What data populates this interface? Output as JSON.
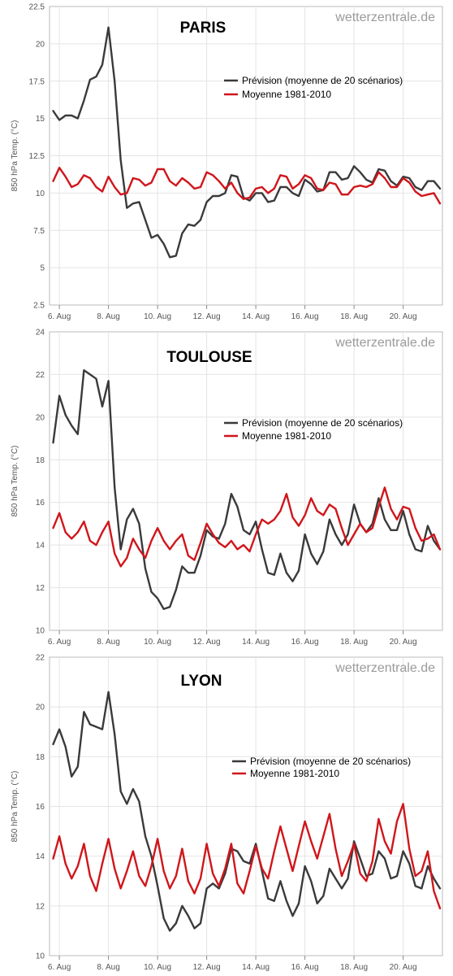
{
  "legend": {
    "forecast_label": "Prévision (moyenne de 20 scénarios)",
    "mean_label": "Moyenne 1981-2010"
  },
  "colors": {
    "forecast": "#3a3a3c",
    "mean": "#d0161b",
    "grid": "#e4e4e4",
    "frame": "#bbbbbb"
  },
  "chart_data": [
    {
      "type": "line",
      "title": "PARIS",
      "watermark": "wetterzentrale.de",
      "ylabel": "850 hPa Temp. (°C)",
      "ylim": [
        2.5,
        22.5
      ],
      "yticks": [
        2.5,
        5,
        7.5,
        10,
        12.5,
        15,
        17.5,
        20,
        22.5
      ],
      "ytick_labels": [
        "2.5",
        "5",
        "7.5",
        "10",
        "12.5",
        "15",
        "17.5",
        "20",
        "22.5"
      ],
      "xlim": [
        5.6,
        21.6
      ],
      "xticks": [
        6,
        8,
        10,
        12,
        14,
        16,
        18,
        20
      ],
      "xtick_labels": [
        "6. Aug",
        "8. Aug",
        "10. Aug",
        "12. Aug",
        "14. Aug",
        "16. Aug",
        "18. Aug",
        "20. Aug"
      ],
      "grid": true,
      "legend_position": "center-right",
      "series": [
        {
          "name": "Prévision (moyenne de 20 scénarios)",
          "x": [
            5.75,
            6,
            6.25,
            6.5,
            6.75,
            7,
            7.25,
            7.5,
            7.75,
            8,
            8.25,
            8.5,
            8.75,
            9,
            9.25,
            9.5,
            9.75,
            10,
            10.25,
            10.5,
            10.75,
            11,
            11.25,
            11.5,
            11.75,
            12,
            12.25,
            12.5,
            12.75,
            13,
            13.25,
            13.5,
            13.75,
            14,
            14.25,
            14.5,
            14.75,
            15,
            15.25,
            15.5,
            15.75,
            16,
            16.25,
            16.5,
            16.75,
            17,
            17.25,
            17.5,
            17.75,
            18,
            18.25,
            18.5,
            18.75,
            19,
            19.25,
            19.5,
            19.75,
            20,
            20.25,
            20.5,
            20.75,
            21,
            21.25,
            21.5
          ],
          "values": [
            15.5,
            14.9,
            15.2,
            15.2,
            15.0,
            16.2,
            17.6,
            17.8,
            18.6,
            21.1,
            17.5,
            12.2,
            9.0,
            9.3,
            9.4,
            8.2,
            7.0,
            7.2,
            6.6,
            5.7,
            5.8,
            7.3,
            7.9,
            7.8,
            8.2,
            9.4,
            9.8,
            9.8,
            10.0,
            11.2,
            11.1,
            9.7,
            9.5,
            10.0,
            10.0,
            9.4,
            9.5,
            10.4,
            10.4,
            10.0,
            9.8,
            10.9,
            10.6,
            10.1,
            10.2,
            11.4,
            11.4,
            10.9,
            11.0,
            11.8,
            11.4,
            10.9,
            10.7,
            11.6,
            11.5,
            10.8,
            10.5,
            11.1,
            11.0,
            10.4,
            10.2,
            10.8,
            10.8,
            10.3
          ]
        },
        {
          "name": "Moyenne 1981-2010",
          "x": [
            5.75,
            6,
            6.25,
            6.5,
            6.75,
            7,
            7.25,
            7.5,
            7.75,
            8,
            8.25,
            8.5,
            8.75,
            9,
            9.25,
            9.5,
            9.75,
            10,
            10.25,
            10.5,
            10.75,
            11,
            11.25,
            11.5,
            11.75,
            12,
            12.25,
            12.5,
            12.75,
            13,
            13.25,
            13.5,
            13.75,
            14,
            14.25,
            14.5,
            14.75,
            15,
            15.25,
            15.5,
            15.75,
            16,
            16.25,
            16.5,
            16.75,
            17,
            17.25,
            17.5,
            17.75,
            18,
            18.25,
            18.5,
            18.75,
            19,
            19.25,
            19.5,
            19.75,
            20,
            20.25,
            20.5,
            20.75,
            21,
            21.25,
            21.5
          ],
          "values": [
            10.8,
            11.7,
            11.1,
            10.4,
            10.6,
            11.2,
            11.0,
            10.4,
            10.1,
            11.1,
            10.4,
            9.9,
            10.0,
            11.0,
            10.9,
            10.5,
            10.7,
            11.6,
            11.6,
            10.8,
            10.5,
            11.0,
            10.7,
            10.3,
            10.4,
            11.4,
            11.2,
            10.8,
            10.3,
            10.7,
            10.0,
            9.6,
            9.7,
            10.3,
            10.4,
            10.0,
            10.3,
            11.2,
            11.1,
            10.3,
            10.6,
            11.2,
            11.0,
            10.3,
            10.2,
            10.7,
            10.6,
            9.9,
            9.9,
            10.4,
            10.5,
            10.4,
            10.6,
            11.4,
            11.0,
            10.4,
            10.4,
            11.0,
            10.7,
            10.1,
            9.8,
            9.9,
            10.0,
            9.3
          ]
        }
      ]
    },
    {
      "type": "line",
      "title": "TOULOUSE",
      "watermark": "wetterzentrale.de",
      "ylabel": "850 hPa Temp. (°C)",
      "ylim": [
        10,
        24
      ],
      "yticks": [
        10,
        12,
        14,
        16,
        18,
        20,
        22,
        24
      ],
      "ytick_labels": [
        "10",
        "12",
        "14",
        "16",
        "18",
        "20",
        "22",
        "24"
      ],
      "xlim": [
        5.6,
        21.6
      ],
      "xticks": [
        6,
        8,
        10,
        12,
        14,
        16,
        18,
        20
      ],
      "xtick_labels": [
        "6. Aug",
        "8. Aug",
        "10. Aug",
        "12. Aug",
        "14. Aug",
        "16. Aug",
        "18. Aug",
        "20. Aug"
      ],
      "grid": true,
      "legend_position": "center-right",
      "series": [
        {
          "name": "Prévision (moyenne de 20 scénarios)",
          "x": [
            5.75,
            6,
            6.25,
            6.5,
            6.75,
            7,
            7.25,
            7.5,
            7.75,
            8,
            8.25,
            8.5,
            8.75,
            9,
            9.25,
            9.5,
            9.75,
            10,
            10.25,
            10.5,
            10.75,
            11,
            11.25,
            11.5,
            11.75,
            12,
            12.25,
            12.5,
            12.75,
            13,
            13.25,
            13.5,
            13.75,
            14,
            14.25,
            14.5,
            14.75,
            15,
            15.25,
            15.5,
            15.75,
            16,
            16.25,
            16.5,
            16.75,
            17,
            17.25,
            17.5,
            17.75,
            18,
            18.25,
            18.5,
            18.75,
            19,
            19.25,
            19.5,
            19.75,
            20,
            20.25,
            20.5,
            20.75,
            21,
            21.25,
            21.5
          ],
          "values": [
            18.8,
            21.0,
            20.1,
            19.6,
            19.2,
            22.2,
            22.0,
            21.8,
            20.5,
            21.7,
            16.7,
            13.8,
            15.2,
            15.7,
            15.0,
            12.9,
            11.8,
            11.5,
            11.0,
            11.1,
            11.9,
            13.0,
            12.7,
            12.7,
            13.5,
            14.7,
            14.4,
            14.3,
            15.0,
            16.4,
            15.8,
            14.7,
            14.5,
            15.1,
            13.8,
            12.7,
            12.6,
            13.6,
            12.7,
            12.3,
            12.8,
            14.5,
            13.6,
            13.1,
            13.7,
            15.2,
            14.5,
            14.0,
            14.5,
            15.9,
            15.0,
            14.6,
            15.0,
            16.2,
            15.2,
            14.7,
            14.7,
            15.6,
            14.5,
            13.8,
            13.7,
            14.9,
            14.2,
            13.8
          ]
        },
        {
          "name": "Moyenne 1981-2010",
          "x": [
            5.75,
            6,
            6.25,
            6.5,
            6.75,
            7,
            7.25,
            7.5,
            7.75,
            8,
            8.25,
            8.5,
            8.75,
            9,
            9.25,
            9.5,
            9.75,
            10,
            10.25,
            10.5,
            10.75,
            11,
            11.25,
            11.5,
            11.75,
            12,
            12.25,
            12.5,
            12.75,
            13,
            13.25,
            13.5,
            13.75,
            14,
            14.25,
            14.5,
            14.75,
            15,
            15.25,
            15.5,
            15.75,
            16,
            16.25,
            16.5,
            16.75,
            17,
            17.25,
            17.5,
            17.75,
            18,
            18.25,
            18.5,
            18.75,
            19,
            19.25,
            19.5,
            19.75,
            20,
            20.25,
            20.5,
            20.75,
            21,
            21.25,
            21.5
          ],
          "values": [
            14.8,
            15.5,
            14.6,
            14.3,
            14.6,
            15.1,
            14.2,
            14.0,
            14.6,
            15.1,
            13.6,
            13.0,
            13.4,
            14.3,
            13.8,
            13.4,
            14.2,
            14.8,
            14.2,
            13.8,
            14.2,
            14.5,
            13.5,
            13.3,
            14.1,
            15.0,
            14.5,
            14.1,
            13.9,
            14.2,
            13.8,
            14.0,
            13.7,
            14.5,
            15.2,
            15.0,
            15.2,
            15.6,
            16.4,
            15.3,
            14.9,
            15.4,
            16.2,
            15.6,
            15.4,
            15.9,
            15.7,
            14.8,
            14.0,
            14.5,
            15.0,
            14.6,
            14.8,
            15.8,
            16.7,
            15.7,
            15.2,
            15.8,
            15.7,
            14.8,
            14.2,
            14.3,
            14.5,
            13.8
          ]
        }
      ]
    },
    {
      "type": "line",
      "title": "LYON",
      "watermark": "wetterzentrale.de",
      "ylabel": "850 hPa Temp. (°C)",
      "ylim": [
        10,
        22
      ],
      "yticks": [
        10,
        12,
        14,
        16,
        18,
        20,
        22
      ],
      "ytick_labels": [
        "10",
        "12",
        "14",
        "16",
        "18",
        "20",
        "22"
      ],
      "xlim": [
        5.6,
        21.6
      ],
      "xticks": [
        6,
        8,
        10,
        12,
        14,
        16,
        18,
        20
      ],
      "xtick_labels": [
        "6. Aug",
        "8. Aug",
        "10. Aug",
        "12. Aug",
        "14. Aug",
        "16. Aug",
        "18. Aug",
        "20. Aug"
      ],
      "grid": true,
      "legend_position": "center-right",
      "series": [
        {
          "name": "Prévision (moyenne de 20 scénarios)",
          "x": [
            5.75,
            6,
            6.25,
            6.5,
            6.75,
            7,
            7.25,
            7.5,
            7.75,
            8,
            8.25,
            8.5,
            8.75,
            9,
            9.25,
            9.5,
            9.75,
            10,
            10.25,
            10.5,
            10.75,
            11,
            11.25,
            11.5,
            11.75,
            12,
            12.25,
            12.5,
            12.75,
            13,
            13.25,
            13.5,
            13.75,
            14,
            14.25,
            14.5,
            14.75,
            15,
            15.25,
            15.5,
            15.75,
            16,
            16.25,
            16.5,
            16.75,
            17,
            17.25,
            17.5,
            17.75,
            18,
            18.25,
            18.5,
            18.75,
            19,
            19.25,
            19.5,
            19.75,
            20,
            20.25,
            20.5,
            20.75,
            21,
            21.25,
            21.5
          ],
          "values": [
            18.5,
            19.1,
            18.4,
            17.2,
            17.6,
            19.8,
            19.3,
            19.2,
            19.1,
            20.6,
            18.9,
            16.6,
            16.1,
            16.7,
            16.2,
            14.8,
            14.0,
            12.8,
            11.5,
            11.0,
            11.3,
            12.0,
            11.6,
            11.1,
            11.3,
            12.7,
            12.9,
            12.7,
            13.3,
            14.3,
            14.2,
            13.8,
            13.7,
            14.5,
            13.4,
            12.3,
            12.2,
            13.0,
            12.2,
            11.6,
            12.1,
            13.6,
            13.0,
            12.1,
            12.4,
            13.5,
            13.1,
            12.7,
            13.1,
            14.6,
            13.9,
            13.2,
            13.3,
            14.2,
            13.9,
            13.1,
            13.2,
            14.2,
            13.7,
            12.8,
            12.7,
            13.6,
            13.1,
            12.7
          ]
        },
        {
          "name": "Moyenne 1981-2010",
          "x": [
            5.75,
            6,
            6.25,
            6.5,
            6.75,
            7,
            7.25,
            7.5,
            7.75,
            8,
            8.25,
            8.5,
            8.75,
            9,
            9.25,
            9.5,
            9.75,
            10,
            10.25,
            10.5,
            10.75,
            11,
            11.25,
            11.5,
            11.75,
            12,
            12.25,
            12.5,
            12.75,
            13,
            13.25,
            13.5,
            13.75,
            14,
            14.25,
            14.5,
            14.75,
            15,
            15.25,
            15.5,
            15.75,
            16,
            16.25,
            16.5,
            16.75,
            17,
            17.25,
            17.5,
            17.75,
            18,
            18.25,
            18.5,
            18.75,
            19,
            19.25,
            19.5,
            19.75,
            20,
            20.25,
            20.5,
            20.75,
            21,
            21.25,
            21.5
          ],
          "values": [
            13.9,
            14.8,
            13.7,
            13.1,
            13.6,
            14.5,
            13.2,
            12.6,
            13.7,
            14.7,
            13.5,
            12.7,
            13.4,
            14.2,
            13.2,
            12.8,
            13.6,
            14.7,
            13.4,
            12.7,
            13.2,
            14.3,
            13.0,
            12.5,
            13.1,
            14.5,
            13.3,
            12.8,
            13.5,
            14.5,
            12.9,
            12.5,
            13.4,
            14.4,
            13.5,
            13.1,
            14.2,
            15.2,
            14.3,
            13.4,
            14.4,
            15.4,
            14.6,
            13.9,
            14.8,
            15.7,
            14.3,
            13.2,
            13.8,
            14.5,
            13.3,
            13.0,
            13.8,
            15.5,
            14.6,
            14.1,
            15.4,
            16.1,
            14.3,
            13.2,
            13.4,
            14.2,
            12.6,
            11.9
          ]
        }
      ]
    }
  ]
}
